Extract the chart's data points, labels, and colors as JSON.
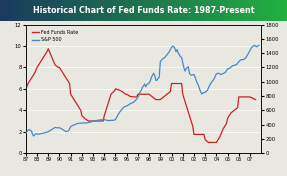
{
  "title": "Historical Chart of Fed Funds Rate: 1987-Present",
  "title_bg_left": "#1b3a5e",
  "title_bg_right": "#22b040",
  "title_color": "white",
  "chart_bg": "#e8e8e0",
  "plot_bg": "#e8e8e0",
  "fed_funds_color": "#cc2222",
  "sp500_color": "#4488cc",
  "left_ylim": [
    0,
    12
  ],
  "right_ylim": [
    0,
    1800
  ],
  "left_yticks": [
    0,
    2,
    4,
    6,
    8,
    10,
    12
  ],
  "right_yticks": [
    0,
    200,
    400,
    600,
    800,
    1000,
    1200,
    1400,
    1600,
    1800
  ],
  "xtick_labels": [
    "87",
    "88",
    "89",
    "90",
    "91",
    "92",
    "93",
    "94",
    "95",
    "96",
    "97",
    "98",
    "99",
    "00",
    "01",
    "02",
    "03",
    "04",
    "05",
    "06",
    "07"
  ],
  "fed_funds_years": [
    1987.0,
    1987.2,
    1987.5,
    1987.8,
    1988.0,
    1988.3,
    1988.6,
    1988.9,
    1989.0,
    1989.3,
    1989.6,
    1989.9,
    1990.0,
    1990.3,
    1990.6,
    1990.9,
    1991.0,
    1991.3,
    1991.6,
    1991.9,
    1992.0,
    1992.3,
    1992.6,
    1992.9,
    1993.0,
    1993.3,
    1993.6,
    1993.9,
    1994.0,
    1994.3,
    1994.6,
    1994.9,
    1995.0,
    1995.3,
    1995.6,
    1995.9,
    1996.0,
    1996.3,
    1996.6,
    1996.9,
    1997.0,
    1997.3,
    1997.6,
    1997.9,
    1998.0,
    1998.3,
    1998.6,
    1998.9,
    1999.0,
    1999.3,
    1999.6,
    1999.9,
    2000.0,
    2000.3,
    2000.6,
    2000.9,
    2001.0,
    2001.3,
    2001.6,
    2001.9,
    2002.0,
    2002.3,
    2002.6,
    2002.9,
    2003.0,
    2003.3,
    2003.6,
    2003.9,
    2004.0,
    2004.3,
    2004.6,
    2004.9,
    2005.0,
    2005.3,
    2005.6,
    2005.9,
    2006.0,
    2006.3,
    2006.6,
    2006.9,
    2007.0,
    2007.5
  ],
  "fed_funds_vals": [
    6.0,
    6.5,
    7.0,
    7.5,
    8.0,
    8.5,
    9.0,
    9.5,
    9.75,
    9.0,
    8.25,
    8.0,
    8.0,
    7.5,
    7.0,
    6.5,
    5.5,
    5.0,
    4.5,
    4.0,
    3.5,
    3.2,
    3.0,
    3.0,
    3.0,
    3.0,
    3.0,
    3.0,
    3.5,
    4.5,
    5.5,
    5.8,
    6.0,
    5.9,
    5.75,
    5.5,
    5.5,
    5.3,
    5.25,
    5.25,
    5.5,
    5.5,
    5.5,
    5.5,
    5.5,
    5.25,
    5.0,
    5.0,
    5.0,
    5.25,
    5.5,
    5.75,
    6.5,
    6.5,
    6.5,
    6.5,
    5.5,
    4.5,
    3.5,
    2.5,
    1.75,
    1.75,
    1.75,
    1.75,
    1.25,
    1.0,
    1.0,
    1.0,
    1.0,
    1.5,
    2.25,
    2.75,
    3.25,
    3.75,
    4.0,
    4.25,
    5.25,
    5.25,
    5.25,
    5.25,
    5.25,
    5.0
  ],
  "sp500_years": [
    1987.0,
    1987.1,
    1987.2,
    1987.3,
    1987.5,
    1987.6,
    1987.7,
    1987.8,
    1987.9,
    1988.0,
    1988.2,
    1988.4,
    1988.6,
    1988.8,
    1989.0,
    1989.2,
    1989.4,
    1989.6,
    1989.8,
    1990.0,
    1990.2,
    1990.4,
    1990.6,
    1990.8,
    1991.0,
    1991.2,
    1991.4,
    1991.6,
    1991.8,
    1992.0,
    1992.2,
    1992.4,
    1992.6,
    1992.8,
    1993.0,
    1993.2,
    1993.4,
    1993.6,
    1993.8,
    1994.0,
    1994.2,
    1994.4,
    1994.6,
    1994.8,
    1995.0,
    1995.2,
    1995.4,
    1995.6,
    1995.8,
    1996.0,
    1996.2,
    1996.4,
    1996.6,
    1996.8,
    1997.0,
    1997.1,
    1997.2,
    1997.3,
    1997.4,
    1997.5,
    1997.6,
    1997.7,
    1997.8,
    1997.9,
    1998.0,
    1998.1,
    1998.2,
    1998.3,
    1998.4,
    1998.5,
    1998.6,
    1998.7,
    1998.8,
    1998.9,
    1999.0,
    1999.2,
    1999.4,
    1999.6,
    1999.8,
    2000.0,
    2000.1,
    2000.2,
    2000.3,
    2000.4,
    2000.5,
    2000.6,
    2000.7,
    2000.8,
    2000.9,
    2001.0,
    2001.1,
    2001.2,
    2001.3,
    2001.4,
    2001.5,
    2001.6,
    2001.7,
    2001.8,
    2001.9,
    2002.0,
    2002.1,
    2002.2,
    2002.3,
    2002.4,
    2002.5,
    2002.6,
    2002.7,
    2002.8,
    2002.9,
    2003.0,
    2003.2,
    2003.4,
    2003.6,
    2003.8,
    2004.0,
    2004.2,
    2004.4,
    2004.6,
    2004.8,
    2005.0,
    2005.2,
    2005.4,
    2005.6,
    2005.8,
    2006.0,
    2006.2,
    2006.4,
    2006.6,
    2006.8,
    2007.0,
    2007.2,
    2007.4,
    2007.6,
    2007.8
  ],
  "sp500_vals": [
    280,
    300,
    320,
    330,
    310,
    260,
    240,
    260,
    270,
    270,
    265,
    275,
    280,
    290,
    300,
    320,
    340,
    360,
    355,
    355,
    340,
    320,
    300,
    310,
    370,
    390,
    400,
    415,
    420,
    420,
    425,
    420,
    430,
    435,
    450,
    455,
    460,
    465,
    468,
    470,
    460,
    455,
    460,
    458,
    470,
    530,
    580,
    620,
    650,
    660,
    680,
    700,
    710,
    740,
    780,
    820,
    860,
    880,
    920,
    940,
    970,
    930,
    960,
    970,
    980,
    1010,
    1060,
    1090,
    1120,
    1090,
    1020,
    1020,
    1050,
    1060,
    1280,
    1320,
    1340,
    1380,
    1420,
    1480,
    1500,
    1490,
    1470,
    1420,
    1450,
    1400,
    1380,
    1350,
    1340,
    1270,
    1200,
    1150,
    1180,
    1200,
    1210,
    1120,
    1100,
    1090,
    1100,
    1100,
    1070,
    1020,
    980,
    950,
    900,
    860,
    830,
    840,
    850,
    850,
    880,
    950,
    1000,
    1040,
    1110,
    1120,
    1100,
    1115,
    1130,
    1180,
    1190,
    1220,
    1230,
    1240,
    1280,
    1310,
    1310,
    1330,
    1380,
    1440,
    1490,
    1510,
    1490,
    1510
  ],
  "legend_fed": "Fed Funds Rate",
  "legend_sp": "S&P 500"
}
